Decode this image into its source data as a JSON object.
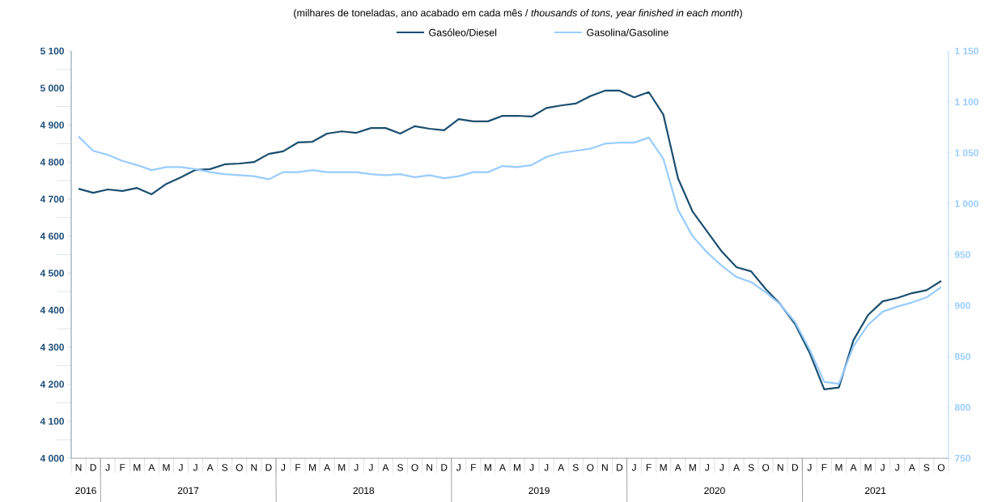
{
  "chart_data": {
    "type": "line",
    "subtitle": "(milhares de toneladas, ano acabado em cada mês / *thousands of tons, year finished in each month*)",
    "categories": [
      "N",
      "D",
      "J",
      "F",
      "M",
      "A",
      "M",
      "J",
      "J",
      "A",
      "S",
      "O",
      "N",
      "D",
      "J",
      "F",
      "M",
      "A",
      "M",
      "J",
      "J",
      "A",
      "S",
      "O",
      "N",
      "D",
      "J",
      "F",
      "M",
      "A",
      "M",
      "J",
      "J",
      "A",
      "S",
      "O",
      "N",
      "D",
      "J",
      "F",
      "M",
      "A",
      "M",
      "J",
      "J",
      "A",
      "S",
      "O",
      "N",
      "D",
      "J",
      "F",
      "M",
      "A",
      "M",
      "J",
      "J",
      "A",
      "S",
      "O"
    ],
    "series": [
      {
        "name": "Gasóleo/Diesel",
        "color": "#1a4e6e",
        "values": [
          4728,
          4717,
          4726,
          4722,
          4730,
          4713,
          4741,
          4759,
          4779,
          4781,
          4794,
          4796,
          4800,
          4822,
          4829,
          4853,
          4855,
          4877,
          4883,
          4879,
          4892,
          4892,
          4877,
          4897,
          4890,
          4886,
          4916,
          4910,
          4910,
          4925,
          4925,
          4923,
          4946,
          4953,
          4958,
          4978,
          4993,
          4993,
          4975,
          4989,
          4928,
          4756,
          4666,
          4612,
          4558,
          4516,
          4505,
          4457,
          4416,
          4363,
          4285,
          4186,
          4191,
          4319,
          4387,
          4424,
          4433,
          4446,
          4454,
          4479
        ]
      },
      {
        "name": "Gasolina/Gasoline",
        "color": "#99ccff",
        "axis": "y2",
        "values": [
          1066,
          1052,
          1048,
          1042,
          1038,
          1033,
          1036,
          1036,
          1034,
          1031,
          1029,
          1028,
          1027,
          1024,
          1031,
          1031,
          1033,
          1031,
          1031,
          1031,
          1029,
          1028,
          1029,
          1026,
          1028,
          1025,
          1027,
          1031,
          1031,
          1037,
          1036,
          1038,
          1046,
          1050,
          1052,
          1054,
          1059,
          1060,
          1060,
          1065,
          1044,
          994,
          968,
          952,
          939,
          928,
          923,
          913,
          901,
          884,
          857,
          825,
          823,
          860,
          881,
          894,
          899,
          903,
          908,
          918
        ]
      }
    ],
    "ylim": [
      4000,
      5100
    ],
    "yticks": [
      {
        "value": 4000,
        "label": "4 000"
      },
      {
        "value": 4100,
        "label": "4 100"
      },
      {
        "value": 4200,
        "label": "4 200"
      },
      {
        "value": 4300,
        "label": "4 300"
      },
      {
        "value": 4400,
        "label": "4 400"
      },
      {
        "value": 4500,
        "label": "4 500"
      },
      {
        "value": 4600,
        "label": "4 600"
      },
      {
        "value": 4700,
        "label": "4 700"
      },
      {
        "value": 4800,
        "label": "4 800"
      },
      {
        "value": 4900,
        "label": "4 900"
      },
      {
        "value": 5000,
        "label": "5 000"
      },
      {
        "value": 5100,
        "label": "5 100"
      }
    ],
    "y2lim": [
      750,
      1150
    ],
    "y2ticks": [
      750,
      800,
      850,
      900,
      950,
      {
        "value": 1000,
        "label": "1 000"
      },
      {
        "value": 1050,
        "label": "1 050"
      },
      {
        "value": 1100,
        "label": "1 100"
      },
      {
        "value": 1150,
        "label": "1 150"
      }
    ],
    "annotations": [
      "2016",
      "2017",
      "2018",
      "2019",
      "2020",
      "2021"
    ],
    "legend": "top",
    "grid": false,
    "marker": "none",
    "line_style": "solid"
  }
}
